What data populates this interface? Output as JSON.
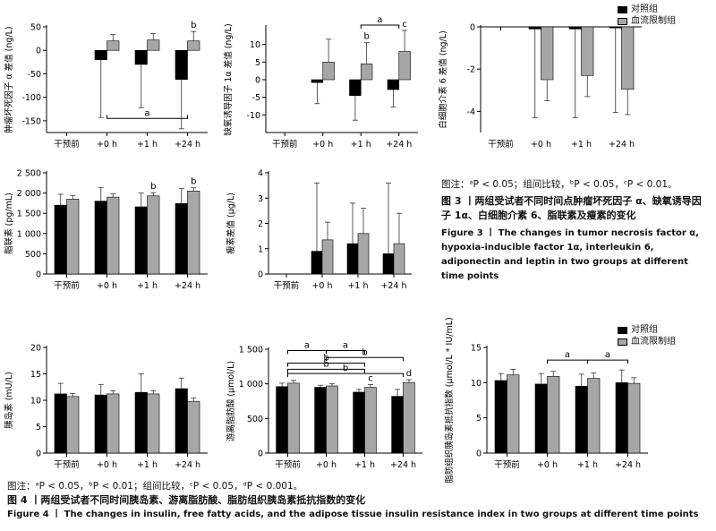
{
  "legend": {
    "control": "对照组",
    "bfr": "血流限制组",
    "control_color": "#000000",
    "bfr_color": "#a6a6a6"
  },
  "figure3": {
    "note_prefix": "图注：",
    "note": "ᵃP < 0.05；组间比较，ᵇP < 0.05，ᶜP < 0.01。",
    "title_cn": "图 3 丨两组受试者不同时间点肿瘤坏死因子 α、缺氧诱导因子 1α、白细胞介素 6、脂联素及瘦素的变化",
    "title_en": "Figure 3 丨 The changes in tumor necrosis factor α, hypoxia-inducible factor 1α, interleukin 6, adiponectin and leptin in two groups at different time points"
  },
  "figure4": {
    "note": "图注：ᵃP < 0.05，ᵇP < 0.01；组间比较，ᶜP < 0.05，ᵈP < 0.001。",
    "title_cn": "图 4 丨两组受试者不同时间胰岛素、游离脂肪酸、脂肪组织胰岛素抵抗指数的变化",
    "title_en": "Figure 4 丨 The changes in insulin, free fatty acids, and the adipose tissue insulin resistance index in two groups at different time points"
  },
  "chart_data": [
    {
      "id": "tnf",
      "type": "bar",
      "ylabel": "肿瘤坏死因子 α 差值 (ng/L)",
      "categories": [
        "干预前",
        "+0 h",
        "+1 h",
        "+24 h"
      ],
      "ylim": [
        -175,
        50
      ],
      "yticks": [
        -150,
        -100,
        -50,
        0,
        50
      ],
      "series": [
        {
          "name": "对照组",
          "values": [
            0,
            -20,
            -30,
            -62
          ],
          "err": [
            0,
            123,
            92,
            105
          ]
        },
        {
          "name": "血流限制组",
          "values": [
            0,
            20,
            22,
            20
          ],
          "err": [
            0,
            14,
            14,
            20
          ]
        }
      ],
      "annotations": [
        {
          "label": "b",
          "category": 3,
          "series": 1
        }
      ],
      "brackets": [
        {
          "from": 1,
          "to": 3,
          "label": "a",
          "y": -145
        }
      ]
    },
    {
      "id": "hif",
      "type": "bar",
      "ylabel": "缺氧诱导因子 1α 差值 (ng/L)",
      "categories": [
        "干预前",
        "+0 h",
        "+1 h",
        "+24 h"
      ],
      "ylim": [
        -15,
        15
      ],
      "yticks": [
        -10,
        -5,
        0,
        5,
        10
      ],
      "series": [
        {
          "name": "对照组",
          "values": [
            0,
            -0.8,
            -4.5,
            -2.8
          ],
          "err": [
            0,
            6,
            7,
            5
          ]
        },
        {
          "name": "血流限制组",
          "values": [
            0,
            5,
            4.5,
            8
          ],
          "err": [
            0,
            6.5,
            6,
            6
          ]
        }
      ],
      "annotations": [
        {
          "label": "b",
          "category": 2,
          "series": 1
        },
        {
          "label": "c",
          "category": 3,
          "series": 1
        }
      ],
      "brackets": [
        {
          "from": 2,
          "to": 3,
          "label": "a",
          "y": 15.5
        }
      ]
    },
    {
      "id": "il6",
      "type": "bar",
      "ylabel": "白细胞介素 6 差值 (ng/L)",
      "categories": [
        "干预前",
        "+0 h",
        "+1 h",
        "+24 h"
      ],
      "ylim": [
        -5,
        0
      ],
      "yticks": [
        -4,
        -2,
        0
      ],
      "series": [
        {
          "name": "对照组",
          "values": [
            0,
            -0.1,
            -0.1,
            -0.05
          ],
          "err": [
            0,
            4.2,
            4.2,
            4.0
          ]
        },
        {
          "name": "血流限制组",
          "values": [
            0,
            -2.5,
            -2.3,
            -2.95
          ],
          "err": [
            0,
            1.0,
            1.0,
            1.2
          ]
        }
      ],
      "annotations": [],
      "brackets": []
    },
    {
      "id": "adipo",
      "type": "bar",
      "ylabel": "脂联素 (pg/mL)",
      "categories": [
        "干预前",
        "+0 h",
        "+1 h",
        "+24 h"
      ],
      "ylim": [
        0,
        2500
      ],
      "yticks": [
        0,
        500,
        1000,
        1500,
        2000,
        2500
      ],
      "series": [
        {
          "name": "对照组",
          "values": [
            1700,
            1800,
            1660,
            1740
          ],
          "err": [
            270,
            340,
            340,
            370
          ]
        },
        {
          "name": "血流限制组",
          "values": [
            1850,
            1900,
            1930,
            2050
          ],
          "err": [
            90,
            80,
            80,
            80
          ]
        }
      ],
      "annotations": [
        {
          "label": "b",
          "category": 2,
          "series": 1
        },
        {
          "label": "b",
          "category": 3,
          "series": 1
        }
      ],
      "brackets": []
    },
    {
      "id": "leptin",
      "type": "bar",
      "ylabel": "瘦素差值 (μg/L)",
      "categories": [
        "干预前",
        "+0 h",
        "+1 h",
        "+24 h"
      ],
      "ylim": [
        0,
        4
      ],
      "yticks": [
        0,
        1,
        2,
        3,
        4
      ],
      "series": [
        {
          "name": "对照组",
          "values": [
            0,
            0.9,
            1.2,
            0.8
          ],
          "err": [
            0,
            2.7,
            1.6,
            2.8
          ]
        },
        {
          "name": "血流限制组",
          "values": [
            0,
            1.35,
            1.6,
            1.2
          ],
          "err": [
            0,
            0.7,
            1.0,
            1.2
          ]
        }
      ],
      "annotations": [],
      "brackets": []
    },
    {
      "id": "insulin",
      "type": "bar",
      "ylabel": "胰岛素 (mU/L)",
      "categories": [
        "干预前",
        "+0 h",
        "+1 h",
        "+24 h"
      ],
      "ylim": [
        0,
        20
      ],
      "yticks": [
        0,
        5,
        10,
        15,
        20
      ],
      "series": [
        {
          "name": "对照组",
          "values": [
            11.2,
            11.0,
            11.5,
            12.2
          ],
          "err": [
            2.0,
            2.0,
            3.5,
            2.0
          ]
        },
        {
          "name": "血流限制组",
          "values": [
            10.7,
            11.2,
            11.2,
            9.8
          ],
          "err": [
            0.6,
            0.6,
            0.6,
            0.6
          ]
        }
      ],
      "annotations": [],
      "brackets": []
    },
    {
      "id": "ffa",
      "type": "bar",
      "ylabel": "游离脂肪酸 (μmol/L)",
      "categories": [
        "干预前",
        "+0 h",
        "+1 h",
        "+24 h"
      ],
      "ylim": [
        0,
        1500
      ],
      "yticks": [
        0,
        500,
        1000,
        1500
      ],
      "series": [
        {
          "name": "对照组",
          "values": [
            960,
            950,
            880,
            820
          ],
          "err": [
            50,
            30,
            40,
            100
          ]
        },
        {
          "name": "血流限制组",
          "values": [
            1010,
            970,
            950,
            1020
          ],
          "err": [
            40,
            30,
            40,
            40
          ]
        }
      ],
      "annotations": [
        {
          "label": "c",
          "category": 2,
          "series": 1
        },
        {
          "label": "d",
          "category": 3,
          "series": 1
        }
      ],
      "brackets": [
        {
          "from": 0,
          "to": 1,
          "label": "a",
          "y": 1480
        },
        {
          "from": 1,
          "to": 2,
          "label": "a",
          "y": 1480
        },
        {
          "from": 1,
          "to": 3,
          "label": "b",
          "y": 1380
        },
        {
          "from": 0,
          "to": 2,
          "label": "b",
          "y": 1300
        },
        {
          "from": 0,
          "to": 2,
          "label": "b",
          "y": 1210
        },
        {
          "from": 0,
          "to": 3,
          "label": "b",
          "y": 1150
        }
      ]
    },
    {
      "id": "adipoir",
      "type": "bar",
      "ylabel": "脂肪组织胰岛素抵抗指数 (μmol/L * IU/mL)",
      "categories": [
        "干预前",
        "+0 h",
        "+1 h",
        "+24 h"
      ],
      "ylim": [
        0,
        15
      ],
      "yticks": [
        0,
        5,
        10,
        15
      ],
      "series": [
        {
          "name": "对照组",
          "values": [
            10.3,
            9.8,
            9.5,
            10.0
          ],
          "err": [
            1.0,
            1.5,
            1.7,
            1.8
          ]
        },
        {
          "name": "血流限制组",
          "values": [
            11.1,
            10.9,
            10.6,
            9.9
          ],
          "err": [
            0.8,
            0.7,
            0.8,
            0.8
          ]
        }
      ],
      "annotations": [],
      "brackets": [
        {
          "from": 1,
          "to": 2,
          "label": "a",
          "y": 13.2
        },
        {
          "from": 2,
          "to": 3,
          "label": "a",
          "y": 13.2
        }
      ]
    }
  ]
}
